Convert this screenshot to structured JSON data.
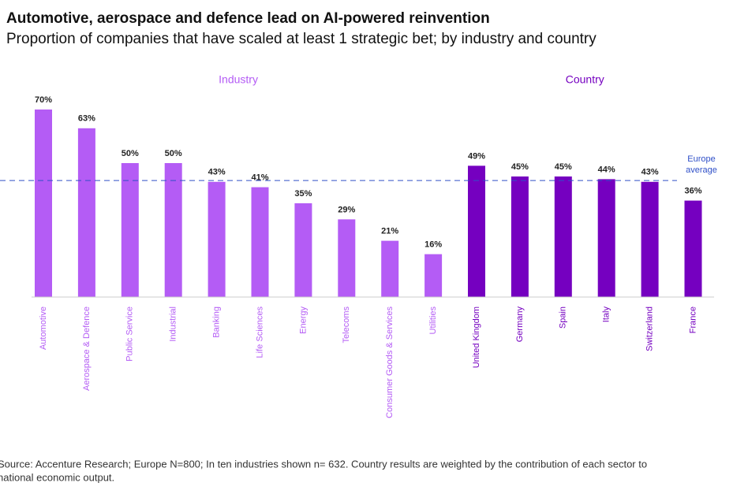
{
  "chart_data": {
    "type": "bar",
    "title": "Automotive, aerospace and defence lead on AI-powered reinvention",
    "subtitle": "Proportion of companies that have scaled at least 1 strategic bet; by industry and country",
    "ylim": [
      0,
      70
    ],
    "groups": [
      {
        "name": "Industry",
        "color": "#b45cf5",
        "categories": [
          "Automotive",
          "Aerospace & Defence",
          "Public Service",
          "Industrial",
          "Banking",
          "Life Sciences",
          "Energy",
          "Telecoms",
          "Consumer Goods & Services",
          "Utilities"
        ],
        "values": [
          70,
          63,
          50,
          50,
          43,
          41,
          35,
          29,
          21,
          16
        ],
        "value_labels": [
          "70%",
          "63%",
          "50%",
          "50%",
          "43%",
          "41%",
          "35%",
          "29%",
          "21%",
          "16%"
        ]
      },
      {
        "name": "Country",
        "color": "#7500c0",
        "categories": [
          "United Kingdom",
          "Germany",
          "Spain",
          "Italy",
          "Switzerland",
          "France"
        ],
        "values": [
          49,
          45,
          45,
          44,
          43,
          36
        ],
        "value_labels": [
          "49%",
          "45%",
          "45%",
          "44%",
          "43%",
          "36%"
        ]
      }
    ],
    "reference_line": {
      "label_lines": [
        "Europe",
        "average"
      ],
      "value": 43.5,
      "color": "#3050c8"
    },
    "footnote_lines": [
      "Source: Accenture Research; Europe N=800; In ten industries shown n= 632. Country results are weighted by the contribution of each sector to",
      "national economic output."
    ]
  }
}
